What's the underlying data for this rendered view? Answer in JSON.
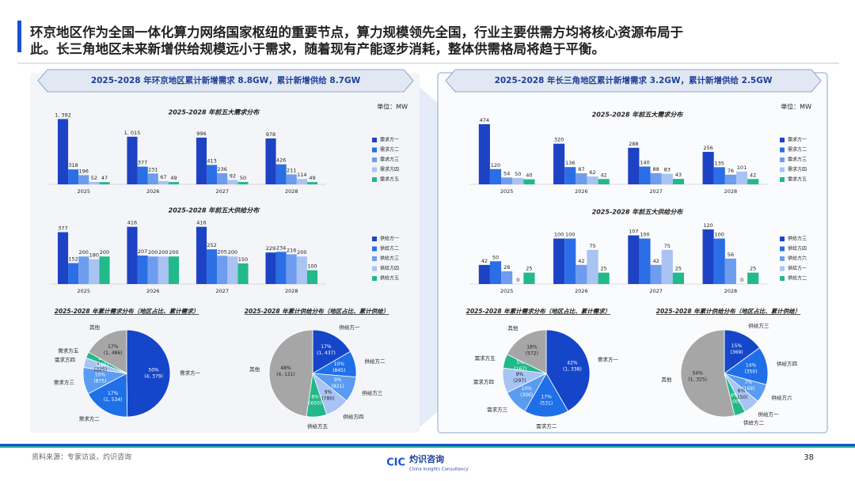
{
  "page": {
    "title_lines": [
      "环京地区作为全国一体化算力网络国家枢纽的重要节点，算力规模领先全国，行业主要供需方均将核心资源布局于",
      "此。长三角地区未来新增供给规模远小于需求，随着现有产能逐步消耗，整体供需格局将趋于平衡。"
    ],
    "source": "资料来源：专家访谈，灼识咨询",
    "page_number": "38",
    "logo": "灼识咨询",
    "logo_en": "China Insights Consultancy",
    "logo_mark": "CIC"
  },
  "panels": [
    {
      "header": "2025-2028 年环京地区累计新增需求 8.8GW，累计新增供给 8.7GW",
      "unit": "单位：MW"
    },
    {
      "header": "2025-2028 年长三角地区累计新增需求 3.2GW，累计新增供给 2.5GW",
      "unit": "单位：MW"
    }
  ],
  "chart_data": [
    {
      "type": "bar",
      "title": "2025-2028 年前五大需求分布",
      "categories": [
        "2025",
        "2026",
        "2027",
        "2028"
      ],
      "ylim": [
        0,
        1400
      ],
      "series": [
        {
          "name": "需求方一",
          "color": "#1d43c4",
          "values": [
            1392,
            1015,
            996,
            978
          ],
          "value_labels": [
            "1, 392",
            "1, 015",
            "996",
            "978"
          ]
        },
        {
          "name": "需求方二",
          "color": "#2b6ee6",
          "values": [
            318,
            377,
            413,
            426
          ]
        },
        {
          "name": "需求方三",
          "color": "#6e9cee",
          "values": [
            196,
            231,
            236,
            211
          ]
        },
        {
          "name": "需求方四",
          "color": "#a9c3f3",
          "values": [
            52,
            67,
            92,
            114
          ]
        },
        {
          "name": "需求方五",
          "color": "#22b98b",
          "values": [
            47,
            49,
            50,
            49
          ]
        }
      ]
    },
    {
      "type": "bar",
      "title": "2025-2028 年前五大供给分布",
      "categories": [
        "2025",
        "2026",
        "2027",
        "2028"
      ],
      "ylim": [
        0,
        420
      ],
      "series": [
        {
          "name": "供给方一",
          "color": "#1d43c4",
          "values": [
            377,
            416,
            416,
            229
          ]
        },
        {
          "name": "供给方二",
          "color": "#2b6ee6",
          "values": [
            152,
            207,
            252,
            234
          ]
        },
        {
          "name": "供给方三",
          "color": "#6e9cee",
          "values": [
            200,
            200,
            205,
            216
          ]
        },
        {
          "name": "供给方四",
          "color": "#a9c3f3",
          "values": [
            180,
            200,
            200,
            200
          ]
        },
        {
          "name": "供给方五",
          "color": "#22b98b",
          "values": [
            200,
            200,
            150,
            100
          ]
        }
      ]
    },
    {
      "type": "pie",
      "title": "2025-2028 年累计需求分布（地区占比、累计需求）",
      "categories": [
        "需求方一",
        "需求方二",
        "需求方三",
        "需求方四",
        "需求方五",
        "其他"
      ],
      "values": [
        4379,
        1534,
        875,
        325,
        195,
        1486
      ],
      "value_labels": [
        "(4, 379)",
        "(1, 534)",
        "(875)",
        "(325)",
        "(195)",
        "(1, 486)"
      ],
      "share_labels": [
        "50%",
        "17%",
        "10%",
        "4%",
        "2%",
        "17%"
      ],
      "colors": [
        "#1546c9",
        "#1f6fe8",
        "#5a9cf2",
        "#a8c4f4",
        "#22b88a",
        "#a6a6a6"
      ]
    },
    {
      "type": "pie",
      "title": "2025-2028 年累计供给分布（地区占比、累计供给）",
      "categories": [
        "供给方一",
        "供给方二",
        "供给方三",
        "供给方四",
        "供给方五",
        "其他"
      ],
      "values": [
        1437,
        845,
        821,
        780,
        650,
        4131
      ],
      "value_labels": [
        "(1, 437)",
        "(845)",
        "(821)",
        "(780)",
        "(650)",
        "(4, 131)"
      ],
      "share_labels": [
        "17%",
        "10%",
        "9%",
        "9%",
        "8%",
        "48%"
      ],
      "colors": [
        "#1546c9",
        "#1f6fe8",
        "#5a9cf2",
        "#a8c4f4",
        "#22b88a",
        "#a6a6a6"
      ]
    },
    {
      "type": "bar",
      "title": "2025-2028 年前五大需求分布",
      "categories": [
        "2025",
        "2026",
        "2027",
        "2028"
      ],
      "ylim": [
        0,
        480
      ],
      "series": [
        {
          "name": "需求方一",
          "color": "#1d43c4",
          "values": [
            474,
            320,
            288,
            256
          ]
        },
        {
          "name": "需求方二",
          "color": "#2b6ee6",
          "values": [
            120,
            136,
            140,
            135
          ]
        },
        {
          "name": "需求方三",
          "color": "#6e9cee",
          "values": [
            54,
            87,
            88,
            76
          ]
        },
        {
          "name": "需求方四",
          "color": "#a9c3f3",
          "values": [
            50,
            62,
            83,
            101
          ]
        },
        {
          "name": "需求方五",
          "color": "#22b98b",
          "values": [
            40,
            42,
            43,
            42
          ]
        }
      ]
    },
    {
      "type": "bar",
      "title": "2025-2028 年前五大供给分布",
      "categories": [
        "2025",
        "2026",
        "2027",
        "2028"
      ],
      "ylim": [
        0,
        120
      ],
      "series": [
        {
          "name": "供给方三",
          "color": "#1d43c4",
          "values": [
            42,
            100,
            107,
            120
          ]
        },
        {
          "name": "供给方四",
          "color": "#2b6ee6",
          "values": [
            50,
            100,
            100,
            100
          ]
        },
        {
          "name": "供给方六",
          "color": "#6e9cee",
          "values": [
            28,
            42,
            42,
            56
          ]
        },
        {
          "name": "供给方一",
          "color": "#a9c3f3",
          "values": [
            0,
            75,
            75,
            0
          ]
        },
        {
          "name": "供给方二",
          "color": "#22b98b",
          "values": [
            25,
            25,
            25,
            25
          ]
        }
      ]
    },
    {
      "type": "pie",
      "title": "2025-2028 年累计需求分布（地区占比、累计需求）",
      "categories": [
        "需求方一",
        "需求方二",
        "需求方三",
        "需求方四",
        "需求方五",
        "其他"
      ],
      "values": [
        1338,
        531,
        306,
        297,
        167,
        572
      ],
      "value_labels": [
        "(1, 338)",
        "(531)",
        "(306)",
        "(297)",
        "(167)",
        "(572)"
      ],
      "share_labels": [
        "42%",
        "17%",
        "10%",
        "9%",
        "5%",
        "18%"
      ],
      "colors": [
        "#1546c9",
        "#1f6fe8",
        "#5a9cf2",
        "#a8c4f4",
        "#22b88a",
        "#a6a6a6"
      ]
    },
    {
      "type": "pie",
      "title": "2025-2028 年累计供给分布（地区占比、累计供给）",
      "categories": [
        "供给方三",
        "供给方四",
        "供给方六",
        "供给方一",
        "供给方二",
        "其他"
      ],
      "values": [
        369,
        350,
        169,
        150,
        100,
        1325
      ],
      "value_labels": [
        "(369)",
        "(350)",
        "(169)",
        "(150)",
        "(100)",
        "(1, 325)"
      ],
      "share_labels": [
        "15%",
        "14%",
        "7%",
        "6%",
        "4%",
        "54%"
      ],
      "colors": [
        "#1546c9",
        "#1f6fe8",
        "#5a9cf2",
        "#a8c4f4",
        "#22b88a",
        "#a6a6a6"
      ]
    }
  ]
}
